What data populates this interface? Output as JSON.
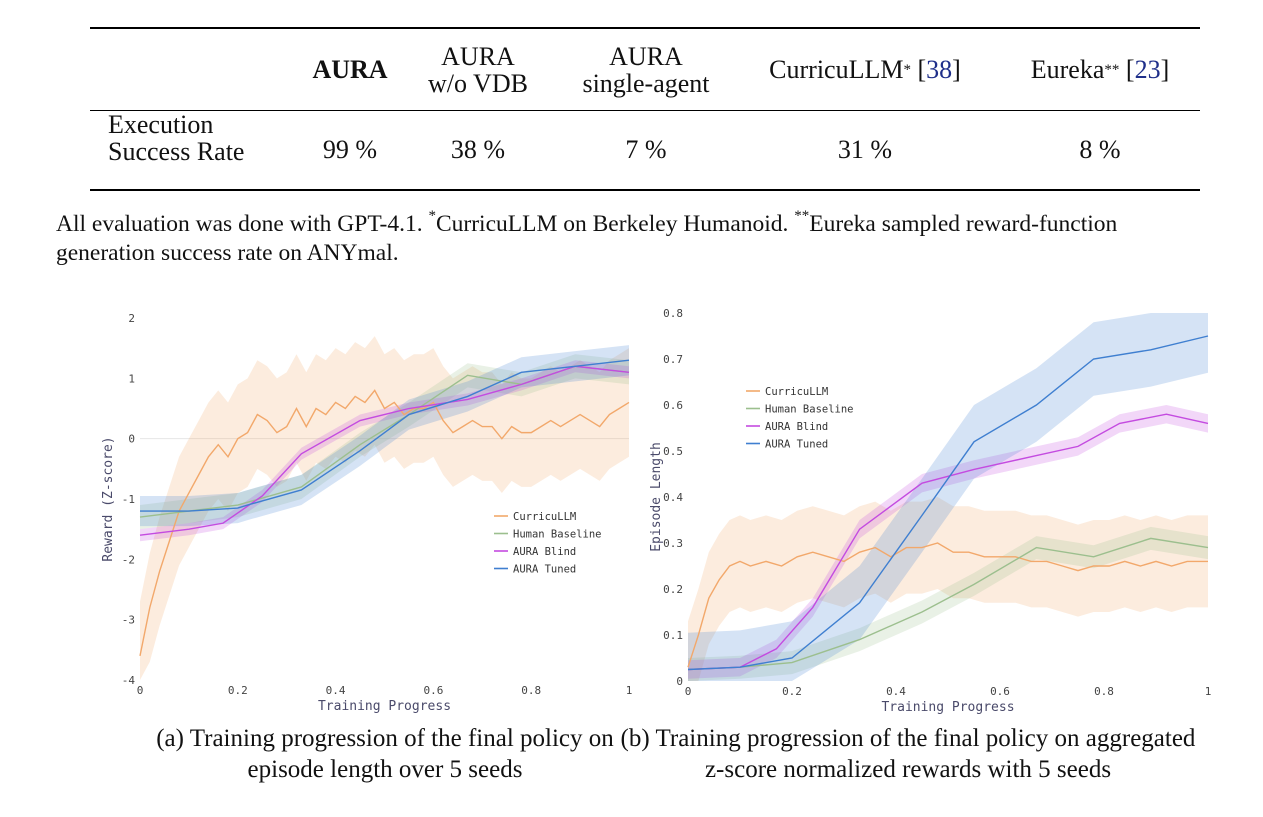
{
  "table": {
    "columns": [
      {
        "label": "AURA",
        "bold": true
      },
      {
        "label_lines": [
          "AURA",
          "w/o VDB"
        ]
      },
      {
        "label_lines": [
          "AURA",
          "single-agent"
        ]
      },
      {
        "label": "CurricuLLM",
        "mark": "*",
        "ref": "38"
      },
      {
        "label": "Eureka",
        "mark": "**",
        "ref": "23"
      }
    ],
    "row_label_lines": [
      "Execution",
      "Success Rate"
    ],
    "values": [
      "99 %",
      "38 %",
      "7 %",
      "31 %",
      "8 %"
    ]
  },
  "note": {
    "lead": "All evaluation was done with GPT-4.1. ",
    "mark1": "*",
    "part1": "CurricuLLM on Berkeley Humanoid. ",
    "mark2": "**",
    "part2": "Eureka sampled reward-function generation success rate on ANYmal."
  },
  "colors": {
    "curricullm": "#f2a86b",
    "human": "#9cbf8e",
    "aura_blind": "#c44be0",
    "aura_tuned": "#3f7fd0"
  },
  "chart_data": [
    {
      "type": "line",
      "xlabel": "Training Progress",
      "ylabel": "Reward (Z-score)",
      "xlim": [
        0,
        1
      ],
      "ylim": [
        -4,
        2
      ],
      "x_ticks": [
        "0",
        "0.2",
        "0.4",
        "0.6",
        "0.8",
        "1"
      ],
      "y_ticks": [
        "-4",
        "-3",
        "-2",
        "-1",
        "0",
        "1",
        "2"
      ],
      "legend": "right-middle",
      "caption": "(a) Training progression of the final policy on episode length over 5 seeds",
      "series": [
        {
          "name": "CurricuLLM",
          "key": "curricullm",
          "x": [
            0,
            0.02,
            0.04,
            0.06,
            0.08,
            0.1,
            0.12,
            0.14,
            0.16,
            0.18,
            0.2,
            0.22,
            0.24,
            0.26,
            0.28,
            0.3,
            0.32,
            0.34,
            0.36,
            0.38,
            0.4,
            0.42,
            0.44,
            0.46,
            0.48,
            0.5,
            0.52,
            0.54,
            0.56,
            0.58,
            0.6,
            0.62,
            0.64,
            0.66,
            0.68,
            0.7,
            0.72,
            0.74,
            0.76,
            0.78,
            0.8,
            0.82,
            0.84,
            0.86,
            0.88,
            0.9,
            0.92,
            0.94,
            0.96,
            0.98,
            1.0
          ],
          "y": [
            -3.6,
            -2.8,
            -2.2,
            -1.7,
            -1.2,
            -0.9,
            -0.6,
            -0.3,
            -0.1,
            -0.3,
            0.0,
            0.1,
            0.4,
            0.3,
            0.1,
            0.2,
            0.5,
            0.2,
            0.5,
            0.4,
            0.6,
            0.5,
            0.7,
            0.6,
            0.8,
            0.5,
            0.6,
            0.4,
            0.5,
            0.5,
            0.6,
            0.3,
            0.1,
            0.2,
            0.3,
            0.2,
            0.2,
            0.0,
            0.2,
            0.1,
            0.1,
            0.2,
            0.3,
            0.2,
            0.3,
            0.4,
            0.3,
            0.2,
            0.4,
            0.5,
            0.6
          ],
          "band": 0.9
        },
        {
          "name": "Human Baseline",
          "key": "human",
          "x": [
            0,
            0.1,
            0.2,
            0.33,
            0.45,
            0.55,
            0.67,
            0.78,
            0.89,
            1.0
          ],
          "y": [
            -1.3,
            -1.2,
            -1.1,
            -0.8,
            -0.1,
            0.4,
            1.05,
            0.9,
            1.2,
            1.1
          ],
          "band": 0.2
        },
        {
          "name": "AURA Blind",
          "key": "aura_blind",
          "x": [
            0,
            0.1,
            0.17,
            0.25,
            0.33,
            0.45,
            0.55,
            0.67,
            0.78,
            0.89,
            1.0
          ],
          "y": [
            -1.6,
            -1.5,
            -1.4,
            -0.95,
            -0.25,
            0.3,
            0.5,
            0.65,
            0.9,
            1.2,
            1.1
          ],
          "band": 0.1
        },
        {
          "name": "AURA Tuned",
          "key": "aura_tuned",
          "x": [
            0,
            0.1,
            0.2,
            0.22,
            0.33,
            0.45,
            0.55,
            0.67,
            0.78,
            0.89,
            1.0
          ],
          "y": [
            -1.2,
            -1.2,
            -1.15,
            -1.1,
            -0.85,
            -0.2,
            0.4,
            0.7,
            1.1,
            1.2,
            1.3
          ],
          "band": 0.25
        }
      ]
    },
    {
      "type": "line",
      "xlabel": "Training Progress",
      "ylabel": "Episode Length",
      "xlim": [
        0,
        1
      ],
      "ylim": [
        0,
        0.8
      ],
      "x_ticks": [
        "0",
        "0.2",
        "0.4",
        "0.6",
        "0.8",
        "1"
      ],
      "y_ticks": [
        "0",
        "0.1",
        "0.2",
        "0.3",
        "0.4",
        "0.5",
        "0.6",
        "0.7",
        "0.8"
      ],
      "legend": "top-left",
      "caption": "(b) Training progression of the final policy on aggregated z-score normalized rewards with 5 seeds",
      "series": [
        {
          "name": "CurricuLLM",
          "key": "curricullm",
          "x": [
            0,
            0.02,
            0.04,
            0.06,
            0.08,
            0.1,
            0.12,
            0.15,
            0.18,
            0.21,
            0.24,
            0.27,
            0.3,
            0.33,
            0.36,
            0.39,
            0.42,
            0.45,
            0.48,
            0.51,
            0.54,
            0.57,
            0.6,
            0.63,
            0.66,
            0.69,
            0.72,
            0.75,
            0.78,
            0.81,
            0.84,
            0.87,
            0.9,
            0.93,
            0.96,
            1.0
          ],
          "y": [
            0.03,
            0.1,
            0.18,
            0.22,
            0.25,
            0.26,
            0.25,
            0.26,
            0.25,
            0.27,
            0.28,
            0.27,
            0.26,
            0.28,
            0.29,
            0.27,
            0.29,
            0.29,
            0.3,
            0.28,
            0.28,
            0.27,
            0.27,
            0.27,
            0.26,
            0.26,
            0.25,
            0.24,
            0.25,
            0.25,
            0.26,
            0.25,
            0.26,
            0.25,
            0.26,
            0.26
          ],
          "band": 0.1
        },
        {
          "name": "Human Baseline",
          "key": "human",
          "x": [
            0,
            0.1,
            0.2,
            0.33,
            0.45,
            0.55,
            0.67,
            0.78,
            0.89,
            1.0
          ],
          "y": [
            0.025,
            0.03,
            0.04,
            0.09,
            0.15,
            0.21,
            0.29,
            0.27,
            0.31,
            0.29
          ],
          "band": 0.025
        },
        {
          "name": "AURA Blind",
          "key": "aura_blind",
          "x": [
            0,
            0.1,
            0.17,
            0.24,
            0.33,
            0.45,
            0.55,
            0.67,
            0.75,
            0.83,
            0.92,
            1.0
          ],
          "y": [
            0.025,
            0.03,
            0.07,
            0.16,
            0.33,
            0.43,
            0.46,
            0.49,
            0.51,
            0.56,
            0.58,
            0.56
          ],
          "band": 0.02
        },
        {
          "name": "AURA Tuned",
          "key": "aura_tuned",
          "x": [
            0,
            0.1,
            0.2,
            0.33,
            0.45,
            0.55,
            0.67,
            0.78,
            0.89,
            1.0
          ],
          "y": [
            0.025,
            0.03,
            0.05,
            0.17,
            0.36,
            0.52,
            0.6,
            0.7,
            0.72,
            0.75
          ],
          "band": 0.08
        }
      ]
    }
  ]
}
